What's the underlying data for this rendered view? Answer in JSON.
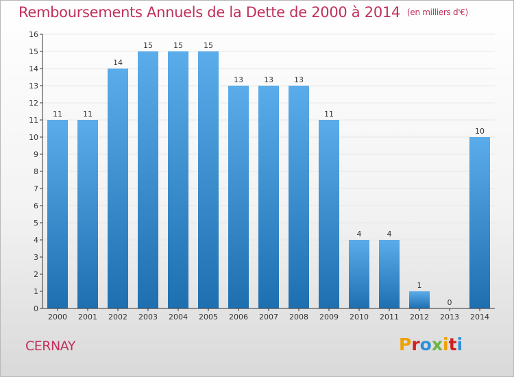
{
  "header": {
    "title": "Remboursements Annuels de la Dette de 2000 à 2014",
    "unit": "(en milliers d'€)"
  },
  "footer": {
    "town": "CERNAY",
    "brand": "Proxiti",
    "brand_colors": [
      "#f0a000",
      "#d02020",
      "#2e8fd8",
      "#6cb33f",
      "#f0a000",
      "#d02020",
      "#2e8fd8"
    ]
  },
  "colors": {
    "title": "#c0305a",
    "bar_light": "#5aacea",
    "bar_dark": "#1d6fb0",
    "grid": "#e6e6e6",
    "axis": "#333333"
  },
  "chart_data": {
    "type": "bar",
    "categories": [
      "2000",
      "2001",
      "2002",
      "2003",
      "2004",
      "2005",
      "2006",
      "2007",
      "2008",
      "2009",
      "2010",
      "2011",
      "2012",
      "2013",
      "2014"
    ],
    "values": [
      11,
      11,
      14,
      15,
      15,
      15,
      13,
      13,
      13,
      11,
      4,
      4,
      1,
      0,
      10
    ],
    "title": "Remboursements Annuels de la Dette de 2000 à 2014",
    "ylim": [
      0,
      16
    ],
    "yticks": [
      0,
      1,
      2,
      3,
      4,
      5,
      6,
      7,
      8,
      9,
      10,
      11,
      12,
      13,
      14,
      15,
      16
    ],
    "grid": true,
    "data_labels": true
  }
}
